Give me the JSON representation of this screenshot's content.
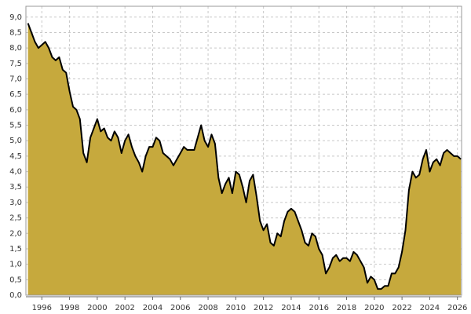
{
  "chart_data": {
    "type": "area",
    "x": [
      1995.0,
      1995.25,
      1995.5,
      1995.75,
      1996.0,
      1996.25,
      1996.5,
      1996.75,
      1997.0,
      1997.25,
      1997.5,
      1997.75,
      1998.0,
      1998.25,
      1998.5,
      1998.75,
      1999.0,
      1999.25,
      1999.5,
      1999.75,
      2000.0,
      2000.25,
      2000.5,
      2000.75,
      2001.0,
      2001.25,
      2001.5,
      2001.75,
      2002.0,
      2002.25,
      2002.5,
      2002.75,
      2003.0,
      2003.25,
      2003.5,
      2003.75,
      2004.0,
      2004.25,
      2004.5,
      2004.75,
      2005.0,
      2005.25,
      2005.5,
      2005.75,
      2006.0,
      2006.25,
      2006.5,
      2006.75,
      2007.0,
      2007.25,
      2007.5,
      2007.75,
      2008.0,
      2008.25,
      2008.5,
      2008.75,
      2009.0,
      2009.25,
      2009.5,
      2009.75,
      2010.0,
      2010.25,
      2010.5,
      2010.75,
      2011.0,
      2011.25,
      2011.5,
      2011.75,
      2012.0,
      2012.25,
      2012.5,
      2012.75,
      2013.0,
      2013.25,
      2013.5,
      2013.75,
      2014.0,
      2014.25,
      2014.5,
      2014.75,
      2015.0,
      2015.25,
      2015.5,
      2015.75,
      2016.0,
      2016.25,
      2016.5,
      2016.75,
      2017.0,
      2017.25,
      2017.5,
      2017.75,
      2018.0,
      2018.25,
      2018.5,
      2018.75,
      2019.0,
      2019.25,
      2019.5,
      2019.75,
      2020.0,
      2020.25,
      2020.5,
      2020.75,
      2021.0,
      2021.25,
      2021.5,
      2021.75,
      2022.0,
      2022.25,
      2022.5,
      2022.75,
      2023.0,
      2023.25,
      2023.5,
      2023.75,
      2024.0,
      2024.25,
      2024.5,
      2024.75,
      2025.0,
      2025.25,
      2025.5,
      2025.75,
      2026.0,
      2026.25
    ],
    "values": [
      8.8,
      8.5,
      8.2,
      8.0,
      8.1,
      8.2,
      8.0,
      7.7,
      7.6,
      7.7,
      7.3,
      7.2,
      6.6,
      6.1,
      6.0,
      5.7,
      4.6,
      4.3,
      5.1,
      5.4,
      5.7,
      5.3,
      5.4,
      5.1,
      5.0,
      5.3,
      5.1,
      4.6,
      5.0,
      5.2,
      4.8,
      4.5,
      4.3,
      4.0,
      4.5,
      4.8,
      4.8,
      5.1,
      5.0,
      4.6,
      4.5,
      4.4,
      4.2,
      4.4,
      4.6,
      4.8,
      4.7,
      4.7,
      4.7,
      5.1,
      5.5,
      5.0,
      4.8,
      5.2,
      4.9,
      3.8,
      3.3,
      3.6,
      3.8,
      3.3,
      4.0,
      3.9,
      3.5,
      3.0,
      3.7,
      3.9,
      3.2,
      2.4,
      2.1,
      2.3,
      1.7,
      1.6,
      2.0,
      1.9,
      2.4,
      2.7,
      2.8,
      2.7,
      2.4,
      2.1,
      1.7,
      1.6,
      2.0,
      1.9,
      1.5,
      1.3,
      0.7,
      0.9,
      1.2,
      1.3,
      1.1,
      1.2,
      1.2,
      1.1,
      1.4,
      1.3,
      1.1,
      0.9,
      0.4,
      0.6,
      0.5,
      0.2,
      0.2,
      0.3,
      0.3,
      0.7,
      0.7,
      0.9,
      1.4,
      2.1,
      3.4,
      4.0,
      3.8,
      3.9,
      4.4,
      4.7,
      4.0,
      4.3,
      4.4,
      4.2,
      4.6,
      4.7,
      4.6,
      4.5,
      4.5,
      4.4
    ],
    "color": "#c6a93d",
    "line_color": "#000000",
    "xlim": [
      1994.85,
      2026.3
    ],
    "xticks": [
      1996,
      1998,
      2000,
      2002,
      2004,
      2006,
      2008,
      2010,
      2012,
      2014,
      2016,
      2018,
      2020,
      2022,
      2024,
      2026
    ],
    "ylim": [
      0,
      9.35
    ],
    "yticks": [
      {
        "value": 0,
        "label": "0,0"
      },
      {
        "value": 0.5,
        "label": "0,5"
      },
      {
        "value": 1,
        "label": "1,0"
      },
      {
        "value": 1.5,
        "label": "1,5"
      },
      {
        "value": 2,
        "label": "2,0"
      },
      {
        "value": 2.5,
        "label": "2,5"
      },
      {
        "value": 3,
        "label": "3,0"
      },
      {
        "value": 3.5,
        "label": "3,5"
      },
      {
        "value": 4,
        "label": "4,0"
      },
      {
        "value": 4.5,
        "label": "4,5"
      },
      {
        "value": 5,
        "label": "5,0"
      },
      {
        "value": 5.5,
        "label": "5,5"
      },
      {
        "value": 6,
        "label": "6,0"
      },
      {
        "value": 6.5,
        "label": "6,5"
      },
      {
        "value": 7,
        "label": "7,0"
      },
      {
        "value": 7.5,
        "label": "7,5"
      },
      {
        "value": 8,
        "label": "8,0"
      },
      {
        "value": 8.5,
        "label": "8,5"
      },
      {
        "value": 9,
        "label": "9,0"
      }
    ],
    "grid": true
  }
}
